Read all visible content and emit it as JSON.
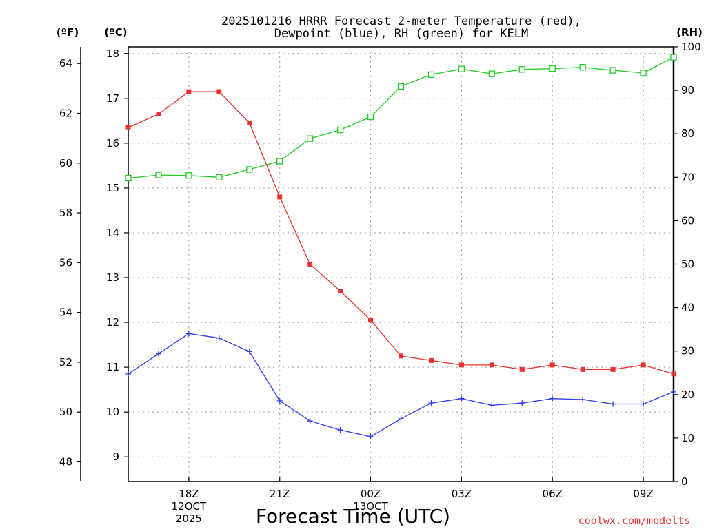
{
  "chart_data": {
    "type": "line",
    "title_line1": "2025101216 HRRR Forecast 2-meter Temperature (red),",
    "title_line2": "Dewpoint (blue), RH (green) for KELM",
    "xlabel": "Forecast Time (UTC)",
    "credit": "coolwx.com/modelts",
    "units": {
      "f": "(ºF)",
      "c": "(ºC)",
      "rh": "(RH)"
    },
    "x_hours": [
      16,
      17,
      18,
      19,
      20,
      21,
      22,
      23,
      24,
      25,
      26,
      27,
      28,
      29,
      30,
      31,
      32,
      33,
      34
    ],
    "x_ticks": [
      {
        "hour": 18,
        "lines": [
          "18Z",
          "12OCT",
          "2025"
        ]
      },
      {
        "hour": 21,
        "lines": [
          "21Z"
        ]
      },
      {
        "hour": 24,
        "lines": [
          "00Z",
          "13OCT"
        ]
      },
      {
        "hour": 27,
        "lines": [
          "03Z"
        ]
      },
      {
        "hour": 30,
        "lines": [
          "06Z"
        ]
      },
      {
        "hour": 33,
        "lines": [
          "09Z"
        ]
      }
    ],
    "xlim": [
      16,
      34
    ],
    "c_axis": {
      "min": 8.45,
      "max": 18.15,
      "ticks": [
        9,
        10,
        11,
        12,
        13,
        14,
        15,
        16,
        17,
        18
      ]
    },
    "f_axis": {
      "ticks": [
        48,
        50,
        52,
        54,
        56,
        58,
        60,
        62,
        64
      ]
    },
    "rh_axis": {
      "min": 0,
      "max": 100,
      "ticks": [
        0,
        10,
        20,
        30,
        40,
        50,
        60,
        70,
        80,
        90,
        100
      ]
    },
    "series": [
      {
        "name": "Temperature",
        "color": "#e8322f",
        "marker": "filled-square",
        "axis": "c",
        "values": [
          16.35,
          16.65,
          17.15,
          17.15,
          16.45,
          14.8,
          13.3,
          12.7,
          12.05,
          11.25,
          11.15,
          11.05,
          11.05,
          10.95,
          11.05,
          10.95,
          10.95,
          11.05,
          10.85
        ]
      },
      {
        "name": "Dewpoint",
        "color": "#2c3cf0",
        "marker": "plus",
        "axis": "c",
        "values": [
          10.85,
          11.3,
          11.75,
          11.65,
          11.35,
          10.25,
          9.8,
          9.6,
          9.45,
          9.85,
          10.2,
          10.3,
          10.15,
          10.2,
          10.3,
          10.28,
          10.18,
          10.18,
          10.45
        ]
      },
      {
        "name": "RH",
        "color": "#1ccc1c",
        "marker": "open-square",
        "axis": "rh",
        "values": [
          69.8,
          70.5,
          70.4,
          70.0,
          71.8,
          73.7,
          78.9,
          80.9,
          83.9,
          90.9,
          93.6,
          94.9,
          93.8,
          94.8,
          95.0,
          95.3,
          94.6,
          94.0,
          97.6
        ]
      }
    ]
  }
}
